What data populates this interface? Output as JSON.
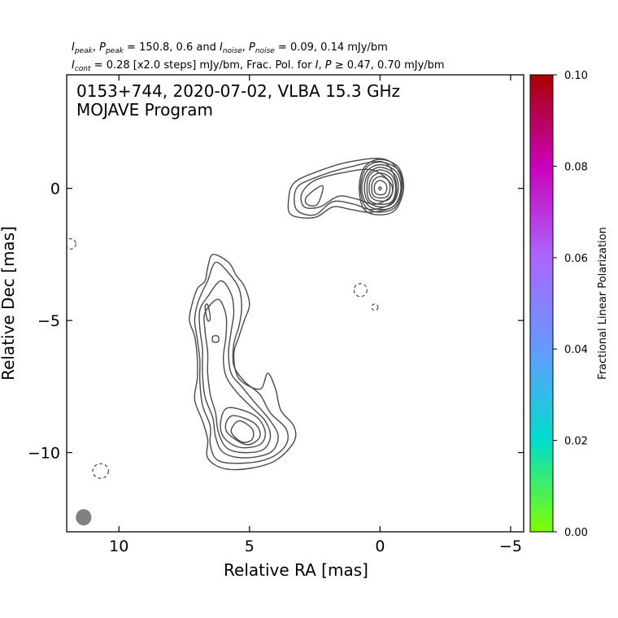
{
  "header": {
    "line1": {
      "I": "I",
      "I_sub": "peak",
      "P": "P",
      "P_sub": "peak",
      "mid": " = 150.8, 0.6 and ",
      "In": "I",
      "In_sub": "noise",
      "Pn": "P",
      "Pn_sub": "noise",
      "tail": " = 0.09, 0.14 mJy/bm"
    },
    "line2": {
      "I": "I",
      "I_sub": "cont",
      "mid": " = 0.28 [x2.0 steps] mJy/bm, Frac. Pol. for ",
      "I2": "I",
      "P2": "P",
      "ge": "≥",
      "tail": " 0.47, 0.70 mJy/bm"
    }
  },
  "plot_title": {
    "line1": "0153+744, 2020-07-02, VLBA 15.3 GHz",
    "line2": "MOJAVE Program"
  },
  "chart_data": {
    "type": "contour",
    "xlabel": "Relative RA [mas]",
    "ylabel": "Relative Dec [mas]",
    "xlim": [
      12.0,
      -5.5
    ],
    "ylim": [
      -13.0,
      4.3
    ],
    "x_ticks": [
      10,
      5,
      0,
      -5
    ],
    "x_tick_labels": [
      "10",
      "5",
      "0",
      "−5"
    ],
    "y_ticks": [
      0,
      -5,
      -10
    ],
    "y_tick_labels": [
      "0",
      "−5",
      "−10"
    ],
    "contour_base_mJy_per_beam": 0.28,
    "contour_step_factor": 2.0,
    "peak_I_mJy_per_beam": 150.8,
    "peak_P_mJy_per_beam": 0.6,
    "noise_I_mJy_per_beam": 0.09,
    "noise_P_mJy_per_beam": 0.14,
    "frac_pol_cut_I_mJy_per_beam": 0.47,
    "frac_pol_cut_P_mJy_per_beam": 0.7,
    "core": {
      "x": 0.0,
      "y": 0.0,
      "levels": [
        [
          [
            0.0,
            1.1
          ],
          [
            -0.7,
            0.8
          ],
          [
            -0.9,
            0.0
          ],
          [
            -0.6,
            -0.8
          ],
          [
            0.0,
            -1.0
          ],
          [
            0.6,
            -0.8
          ],
          [
            0.8,
            0.0
          ],
          [
            0.6,
            0.8
          ]
        ],
        [
          [
            0.0,
            1.0
          ],
          [
            -0.7,
            0.7
          ],
          [
            -0.85,
            0.0
          ],
          [
            -0.6,
            -0.7
          ],
          [
            0.0,
            -0.9
          ],
          [
            0.55,
            -0.7
          ],
          [
            0.75,
            0.0
          ],
          [
            0.55,
            0.75
          ]
        ],
        [
          [
            0.0,
            0.9
          ],
          [
            -0.6,
            0.65
          ],
          [
            -0.8,
            0.0
          ],
          [
            -0.55,
            -0.65
          ],
          [
            0.0,
            -0.8
          ],
          [
            0.5,
            -0.6
          ],
          [
            0.7,
            0.0
          ],
          [
            0.5,
            0.65
          ]
        ],
        [
          [
            0.0,
            0.8
          ],
          [
            -0.55,
            0.55
          ],
          [
            -0.7,
            0.0
          ],
          [
            -0.5,
            -0.55
          ],
          [
            0.0,
            -0.7
          ],
          [
            0.45,
            -0.5
          ],
          [
            0.6,
            0.0
          ],
          [
            0.45,
            0.55
          ]
        ],
        [
          [
            0.0,
            0.7
          ],
          [
            -0.45,
            0.5
          ],
          [
            -0.6,
            0.0
          ],
          [
            -0.45,
            -0.5
          ],
          [
            0.0,
            -0.6
          ],
          [
            0.4,
            -0.45
          ],
          [
            0.5,
            0.0
          ],
          [
            0.4,
            0.5
          ]
        ],
        [
          [
            0.0,
            0.58
          ],
          [
            -0.4,
            0.4
          ],
          [
            -0.5,
            0.0
          ],
          [
            -0.35,
            -0.4
          ],
          [
            0.0,
            -0.48
          ],
          [
            0.32,
            -0.35
          ],
          [
            0.42,
            0.0
          ],
          [
            0.32,
            0.4
          ]
        ],
        [
          [
            0.0,
            0.45
          ],
          [
            -0.3,
            0.32
          ],
          [
            -0.38,
            0.0
          ],
          [
            -0.28,
            -0.3
          ],
          [
            0.0,
            -0.36
          ],
          [
            0.25,
            -0.28
          ],
          [
            0.32,
            0.0
          ],
          [
            0.25,
            0.3
          ]
        ],
        [
          [
            0.0,
            0.3
          ],
          [
            -0.2,
            0.2
          ],
          [
            -0.26,
            0.0
          ],
          [
            -0.18,
            -0.2
          ],
          [
            0.0,
            -0.24
          ],
          [
            0.17,
            -0.18
          ],
          [
            0.22,
            0.0
          ],
          [
            0.17,
            0.2
          ]
        ],
        [
          [
            0.0,
            0.06
          ],
          [
            -0.05,
            0.0
          ],
          [
            0.0,
            -0.06
          ],
          [
            0.05,
            0.0
          ]
        ]
      ]
    },
    "inner_jet": [
      [
        [
          -0.8,
          0.4
        ],
        [
          -0.2,
          1.1
        ],
        [
          1.2,
          1.0
        ],
        [
          2.5,
          0.6
        ],
        [
          3.3,
          0.2
        ],
        [
          3.5,
          -0.4
        ],
        [
          3.4,
          -1.0
        ],
        [
          2.5,
          -1.1
        ],
        [
          1.8,
          -0.7
        ],
        [
          1.1,
          -0.8
        ],
        [
          0.3,
          -0.9
        ],
        [
          -0.6,
          -0.6
        ]
      ],
      [
        [
          -0.6,
          0.3
        ],
        [
          -0.1,
          1.0
        ],
        [
          1.2,
          0.8
        ],
        [
          2.5,
          0.4
        ],
        [
          3.2,
          0.0
        ],
        [
          3.2,
          -0.8
        ],
        [
          2.5,
          -1.0
        ],
        [
          1.8,
          -0.5
        ],
        [
          1.0,
          -0.6
        ],
        [
          0.3,
          -0.8
        ],
        [
          -0.5,
          -0.5
        ]
      ],
      [
        [
          -0.4,
          0.2
        ],
        [
          0.3,
          0.7
        ],
        [
          1.4,
          0.6
        ],
        [
          2.5,
          0.3
        ],
        [
          3.0,
          -0.2
        ],
        [
          2.9,
          -0.7
        ],
        [
          2.3,
          -0.7
        ],
        [
          1.6,
          -0.3
        ],
        [
          0.9,
          -0.4
        ],
        [
          0.2,
          -0.6
        ],
        [
          -0.4,
          -0.3
        ]
      ],
      [
        [
          2.8,
          -0.3
        ],
        [
          2.2,
          0.1
        ],
        [
          2.4,
          -0.6
        ],
        [
          2.8,
          -0.6
        ]
      ]
    ],
    "extended_jet": [
      [
        [
          6.4,
          -2.5
        ],
        [
          5.8,
          -2.8
        ],
        [
          5.5,
          -3.3
        ],
        [
          5.2,
          -3.7
        ],
        [
          5.0,
          -4.4
        ],
        [
          5.2,
          -5.0
        ],
        [
          5.4,
          -5.6
        ],
        [
          5.6,
          -6.3
        ],
        [
          5.4,
          -7.2
        ],
        [
          4.6,
          -7.6
        ],
        [
          4.3,
          -7.0
        ],
        [
          4.0,
          -7.6
        ],
        [
          3.8,
          -8.4
        ],
        [
          3.3,
          -9.0
        ],
        [
          3.3,
          -9.6
        ],
        [
          4.0,
          -10.3
        ],
        [
          5.0,
          -10.6
        ],
        [
          6.0,
          -10.6
        ],
        [
          6.6,
          -10.2
        ],
        [
          6.6,
          -9.5
        ],
        [
          6.8,
          -8.8
        ],
        [
          7.1,
          -8.0
        ],
        [
          7.0,
          -7.2
        ],
        [
          7.0,
          -6.4
        ],
        [
          7.1,
          -5.6
        ],
        [
          7.3,
          -5.0
        ],
        [
          7.2,
          -4.4
        ],
        [
          7.0,
          -3.8
        ],
        [
          6.7,
          -3.5
        ],
        [
          6.6,
          -3.0
        ]
      ],
      [
        [
          6.3,
          -2.8
        ],
        [
          5.8,
          -3.2
        ],
        [
          5.4,
          -3.8
        ],
        [
          5.3,
          -4.5
        ],
        [
          5.4,
          -5.2
        ],
        [
          5.6,
          -5.9
        ],
        [
          5.6,
          -6.7
        ],
        [
          5.2,
          -7.3
        ],
        [
          4.6,
          -7.8
        ],
        [
          4.2,
          -8.5
        ],
        [
          3.6,
          -9.1
        ],
        [
          3.6,
          -9.7
        ],
        [
          4.2,
          -10.2
        ],
        [
          5.2,
          -10.4
        ],
        [
          6.2,
          -10.3
        ],
        [
          6.5,
          -9.7
        ],
        [
          6.5,
          -9.0
        ],
        [
          6.8,
          -8.2
        ],
        [
          6.9,
          -7.3
        ],
        [
          6.9,
          -6.5
        ],
        [
          7.0,
          -5.7
        ],
        [
          7.1,
          -5.0
        ],
        [
          7.0,
          -4.4
        ],
        [
          6.8,
          -3.9
        ],
        [
          6.6,
          -3.5
        ]
      ],
      [
        [
          6.1,
          -3.5
        ],
        [
          5.7,
          -4.0
        ],
        [
          5.6,
          -4.7
        ],
        [
          5.7,
          -5.4
        ],
        [
          5.8,
          -6.2
        ],
        [
          5.7,
          -7.0
        ],
        [
          5.3,
          -7.5
        ],
        [
          4.8,
          -8.1
        ],
        [
          4.2,
          -8.8
        ],
        [
          3.9,
          -9.4
        ],
        [
          4.2,
          -10.0
        ],
        [
          5.2,
          -10.2
        ],
        [
          6.0,
          -10.0
        ],
        [
          6.3,
          -9.4
        ],
        [
          6.4,
          -8.7
        ],
        [
          6.7,
          -7.9
        ],
        [
          6.8,
          -7.0
        ],
        [
          6.8,
          -6.1
        ],
        [
          6.9,
          -5.3
        ],
        [
          6.9,
          -4.6
        ],
        [
          6.6,
          -4.1
        ]
      ],
      [
        [
          6.2,
          -4.2
        ],
        [
          5.9,
          -4.8
        ],
        [
          5.9,
          -5.6
        ],
        [
          6.0,
          -6.4
        ],
        [
          5.9,
          -7.1
        ],
        [
          5.5,
          -7.7
        ],
        [
          4.9,
          -8.3
        ],
        [
          4.4,
          -8.8
        ],
        [
          4.2,
          -9.4
        ],
        [
          4.5,
          -9.9
        ],
        [
          5.3,
          -10.0
        ],
        [
          5.9,
          -9.8
        ],
        [
          6.2,
          -9.2
        ],
        [
          6.3,
          -8.5
        ],
        [
          6.5,
          -7.8
        ],
        [
          6.6,
          -7.0
        ],
        [
          6.6,
          -6.2
        ],
        [
          6.7,
          -5.4
        ],
        [
          6.7,
          -4.7
        ]
      ],
      [
        [
          5.8,
          -8.3
        ],
        [
          4.8,
          -8.6
        ],
        [
          4.4,
          -9.2
        ],
        [
          4.6,
          -9.7
        ],
        [
          5.4,
          -9.8
        ],
        [
          6.0,
          -9.4
        ],
        [
          6.1,
          -8.8
        ]
      ],
      [
        [
          5.6,
          -8.6
        ],
        [
          4.8,
          -8.9
        ],
        [
          4.6,
          -9.4
        ],
        [
          5.1,
          -9.7
        ],
        [
          5.8,
          -9.3
        ],
        [
          5.9,
          -8.9
        ]
      ],
      [
        [
          5.4,
          -8.8
        ],
        [
          4.9,
          -9.1
        ],
        [
          4.9,
          -9.5
        ],
        [
          5.3,
          -9.6
        ],
        [
          5.7,
          -9.2
        ]
      ],
      [
        [
          6.6,
          -4.4
        ],
        [
          6.5,
          -4.9
        ],
        [
          6.6,
          -5.0
        ],
        [
          6.7,
          -4.5
        ]
      ],
      [
        [
          6.2,
          -5.6
        ],
        [
          6.2,
          -5.8
        ],
        [
          6.4,
          -5.8
        ],
        [
          6.4,
          -5.6
        ]
      ]
    ],
    "negative_contours": [
      {
        "x": 11.85,
        "y": -2.1,
        "rx": 0.2,
        "ry": 0.2
      },
      {
        "x": 0.75,
        "y": -3.85,
        "rx": 0.25,
        "ry": 0.25
      },
      {
        "x": 0.2,
        "y": -4.5,
        "rx": 0.12,
        "ry": 0.12
      },
      {
        "x": 10.7,
        "y": -10.7,
        "rx": 0.3,
        "ry": 0.28
      }
    ],
    "beam": {
      "x": 11.35,
      "y": -12.45,
      "rx_mas": 0.3,
      "ry_mas": 0.31,
      "color": "#808080"
    },
    "colorbar": {
      "label": "Fractional Linear Polarization",
      "min": 0.0,
      "max": 0.1,
      "ticks": [
        0.0,
        0.02,
        0.04,
        0.06,
        0.08,
        0.1
      ],
      "tick_labels": [
        "0.00",
        "0.02",
        "0.04",
        "0.06",
        "0.08",
        "0.10"
      ],
      "stops": [
        "#7fff00",
        "#00ddcc",
        "#6699ff",
        "#aa66ff",
        "#cc00bb",
        "#aa0000"
      ]
    }
  }
}
